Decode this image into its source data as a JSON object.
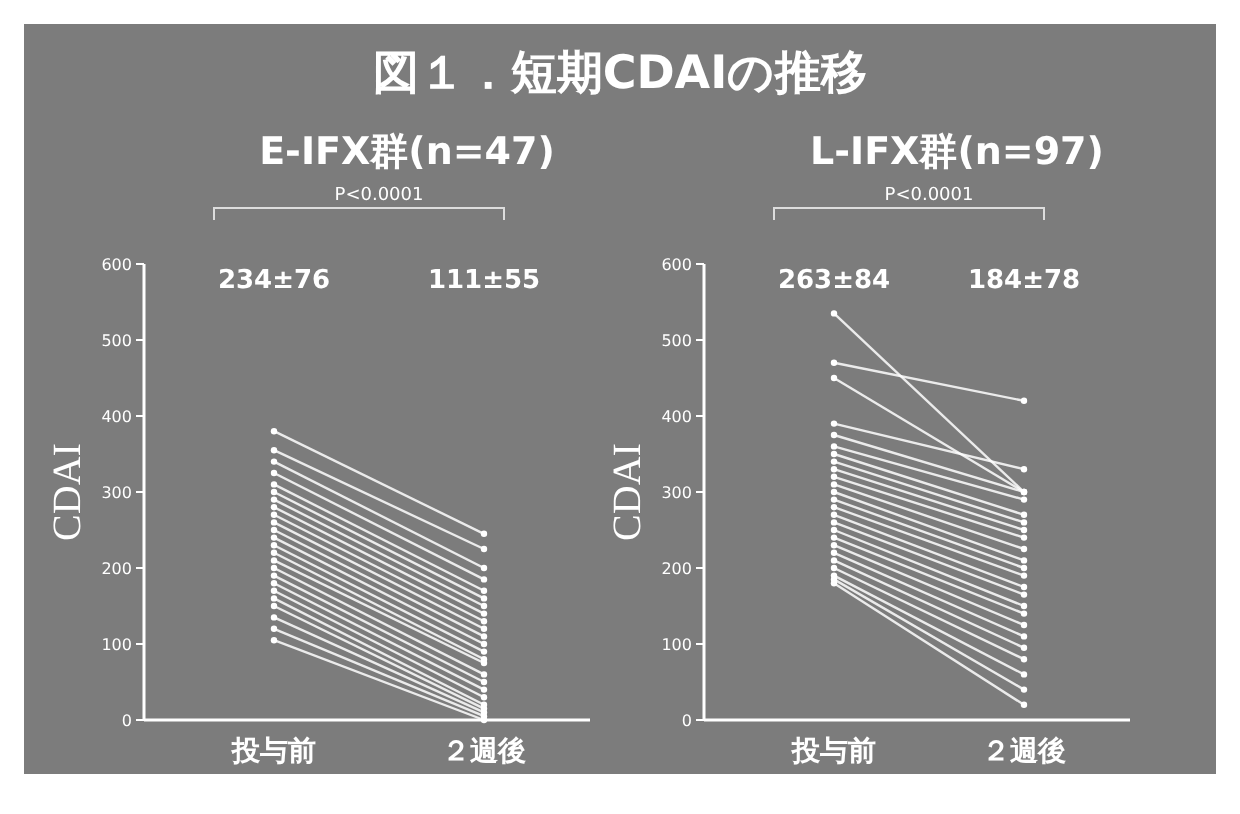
{
  "chart_data": [
    {
      "type": "line",
      "title": "E-IFX群(n=47)",
      "ylabel": "CDAI",
      "categories": [
        "投与前",
        "２週後"
      ],
      "ylim": [
        0,
        600
      ],
      "yticks": [
        0,
        100,
        200,
        300,
        400,
        500,
        600
      ],
      "marker": "circle",
      "line_style": "solid",
      "grid": false,
      "subtitle": "P<0.0001",
      "annotations": [
        "図１．短期CDAIの推移",
        "234±76",
        "111±55"
      ],
      "series": [
        {
          "color": "#ffffff",
          "values": [
            380,
            245
          ]
        },
        {
          "color": "#ffffff",
          "values": [
            355,
            225
          ]
        },
        {
          "color": "#ffffff",
          "values": [
            340,
            200
          ]
        },
        {
          "color": "#ffffff",
          "values": [
            325,
            185
          ]
        },
        {
          "color": "#ffffff",
          "values": [
            310,
            170
          ]
        },
        {
          "color": "#ffffff",
          "values": [
            300,
            160
          ]
        },
        {
          "color": "#ffffff",
          "values": [
            290,
            150
          ]
        },
        {
          "color": "#ffffff",
          "values": [
            280,
            140
          ]
        },
        {
          "color": "#ffffff",
          "values": [
            270,
            130
          ]
        },
        {
          "color": "#ffffff",
          "values": [
            260,
            120
          ]
        },
        {
          "color": "#ffffff",
          "values": [
            250,
            110
          ]
        },
        {
          "color": "#ffffff",
          "values": [
            240,
            100
          ]
        },
        {
          "color": "#ffffff",
          "values": [
            230,
            90
          ]
        },
        {
          "color": "#ffffff",
          "values": [
            220,
            80
          ]
        },
        {
          "color": "#ffffff",
          "values": [
            210,
            75
          ]
        },
        {
          "color": "#ffffff",
          "values": [
            200,
            60
          ]
        },
        {
          "color": "#ffffff",
          "values": [
            190,
            50
          ]
        },
        {
          "color": "#ffffff",
          "values": [
            180,
            40
          ]
        },
        {
          "color": "#ffffff",
          "values": [
            170,
            30
          ]
        },
        {
          "color": "#ffffff",
          "values": [
            160,
            20
          ]
        },
        {
          "color": "#ffffff",
          "values": [
            150,
            15
          ]
        },
        {
          "color": "#ffffff",
          "values": [
            135,
            10
          ]
        },
        {
          "color": "#ffffff",
          "values": [
            120,
            5
          ]
        },
        {
          "color": "#ffffff",
          "values": [
            105,
            0
          ]
        }
      ]
    },
    {
      "type": "line",
      "title": "L-IFX群(n=97)",
      "ylabel": "CDAI",
      "categories": [
        "投与前",
        "２週後"
      ],
      "ylim": [
        0,
        600
      ],
      "yticks": [
        0,
        100,
        200,
        300,
        400,
        500,
        600
      ],
      "marker": "circle",
      "line_style": "solid",
      "grid": false,
      "subtitle": "P<0.0001",
      "annotations": [
        "263±84",
        "184±78"
      ],
      "series": [
        {
          "color": "#ffffff",
          "values": [
            535,
            300
          ]
        },
        {
          "color": "#ffffff",
          "values": [
            470,
            420
          ]
        },
        {
          "color": "#ffffff",
          "values": [
            450,
            300
          ]
        },
        {
          "color": "#ffffff",
          "values": [
            390,
            330
          ]
        },
        {
          "color": "#ffffff",
          "values": [
            375,
            300
          ]
        },
        {
          "color": "#ffffff",
          "values": [
            360,
            290
          ]
        },
        {
          "color": "#ffffff",
          "values": [
            350,
            270
          ]
        },
        {
          "color": "#ffffff",
          "values": [
            340,
            260
          ]
        },
        {
          "color": "#ffffff",
          "values": [
            330,
            250
          ]
        },
        {
          "color": "#ffffff",
          "values": [
            320,
            240
          ]
        },
        {
          "color": "#ffffff",
          "values": [
            310,
            225
          ]
        },
        {
          "color": "#ffffff",
          "values": [
            300,
            210
          ]
        },
        {
          "color": "#ffffff",
          "values": [
            290,
            200
          ]
        },
        {
          "color": "#ffffff",
          "values": [
            280,
            190
          ]
        },
        {
          "color": "#ffffff",
          "values": [
            270,
            175
          ]
        },
        {
          "color": "#ffffff",
          "values": [
            260,
            165
          ]
        },
        {
          "color": "#ffffff",
          "values": [
            250,
            150
          ]
        },
        {
          "color": "#ffffff",
          "values": [
            240,
            140
          ]
        },
        {
          "color": "#ffffff",
          "values": [
            230,
            125
          ]
        },
        {
          "color": "#ffffff",
          "values": [
            220,
            110
          ]
        },
        {
          "color": "#ffffff",
          "values": [
            210,
            95
          ]
        },
        {
          "color": "#ffffff",
          "values": [
            200,
            80
          ]
        },
        {
          "color": "#ffffff",
          "values": [
            190,
            60
          ]
        },
        {
          "color": "#ffffff",
          "values": [
            185,
            40
          ]
        },
        {
          "color": "#ffffff",
          "values": [
            180,
            20
          ]
        }
      ]
    }
  ]
}
